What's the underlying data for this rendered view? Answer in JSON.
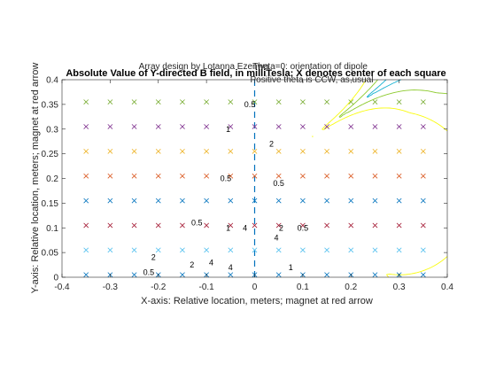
{
  "chart_data": {
    "type": "contour",
    "title": "Absolute Value of Y-directed B field, in milliTesla;  X denotes center of each square",
    "annotations": [
      "Array design by Lotanna Ezenwa",
      "Theta=0: orientation of dipole",
      "Positive theta is CCW, as usual"
    ],
    "xlabel": "X-axis: Relative location, meters;  magnet at red arrow",
    "ylabel": "Y-axis: Relative location, meters;  magnet at red arrow",
    "xlim": [
      -0.4,
      0.4
    ],
    "ylim": [
      0,
      0.4
    ],
    "xticks": [
      "-0.4",
      "-0.3",
      "-0.2",
      "-0.1",
      "0",
      "0.1",
      "0.2",
      "0.3",
      "0.4"
    ],
    "yticks": [
      "0",
      "0.05",
      "0.1",
      "0.15",
      "0.2",
      "0.25",
      "0.3",
      "0.35",
      "0.4"
    ],
    "grid": false,
    "markers": {
      "symbol": "x",
      "x": [
        -0.35,
        -0.3,
        -0.25,
        -0.2,
        -0.15,
        -0.1,
        -0.05,
        0,
        0.05,
        0.1,
        0.15,
        0.2,
        0.25,
        0.3,
        0.35
      ],
      "rows": [
        {
          "y": 0.005,
          "color": "#0072bd"
        },
        {
          "y": 0.055,
          "color": "#4dbeee"
        },
        {
          "y": 0.105,
          "color": "#a2142f"
        },
        {
          "y": 0.155,
          "color": "#0072bd"
        },
        {
          "y": 0.205,
          "color": "#d95319"
        },
        {
          "y": 0.255,
          "color": "#edb120"
        },
        {
          "y": 0.305,
          "color": "#7e2f8e"
        },
        {
          "y": 0.355,
          "color": "#77ac30"
        }
      ]
    },
    "dashed_line": {
      "x": 0,
      "color": "#0072bd"
    },
    "contour_levels": [
      {
        "level": 0.5,
        "color": "#3e26a8"
      },
      {
        "level": 1,
        "color": "#2b6ef2"
      },
      {
        "level": 2,
        "color": "#15b1d1"
      },
      {
        "level": 4,
        "color": "#8cca2d"
      },
      {
        "level": 8,
        "color": "#f9fb0e"
      }
    ],
    "contour_labels": [
      {
        "text": "0.5",
        "x": -0.01,
        "y": 0.35
      },
      {
        "text": "1",
        "x": -0.055,
        "y": 0.3
      },
      {
        "text": "2",
        "x": 0.035,
        "y": 0.27
      },
      {
        "text": "0.5",
        "x": -0.06,
        "y": 0.2
      },
      {
        "text": "0.5",
        "x": 0.05,
        "y": 0.19
      },
      {
        "text": "0.5",
        "x": 0.1,
        "y": 0.1
      },
      {
        "text": "0.5",
        "x": -0.12,
        "y": 0.11
      },
      {
        "text": "1",
        "x": -0.055,
        "y": 0.1
      },
      {
        "text": "2",
        "x": 0.055,
        "y": 0.1
      },
      {
        "text": "4",
        "x": -0.02,
        "y": 0.1
      },
      {
        "text": "4",
        "x": 0.045,
        "y": 0.08
      },
      {
        "text": "1",
        "x": 0.075,
        "y": 0.02
      },
      {
        "text": "2",
        "x": -0.21,
        "y": 0.04
      },
      {
        "text": "0.5",
        "x": -0.22,
        "y": 0.01
      },
      {
        "text": "2",
        "x": -0.13,
        "y": 0.025
      },
      {
        "text": "4",
        "x": -0.09,
        "y": 0.03
      },
      {
        "text": "4",
        "x": -0.05,
        "y": 0.02
      }
    ]
  }
}
